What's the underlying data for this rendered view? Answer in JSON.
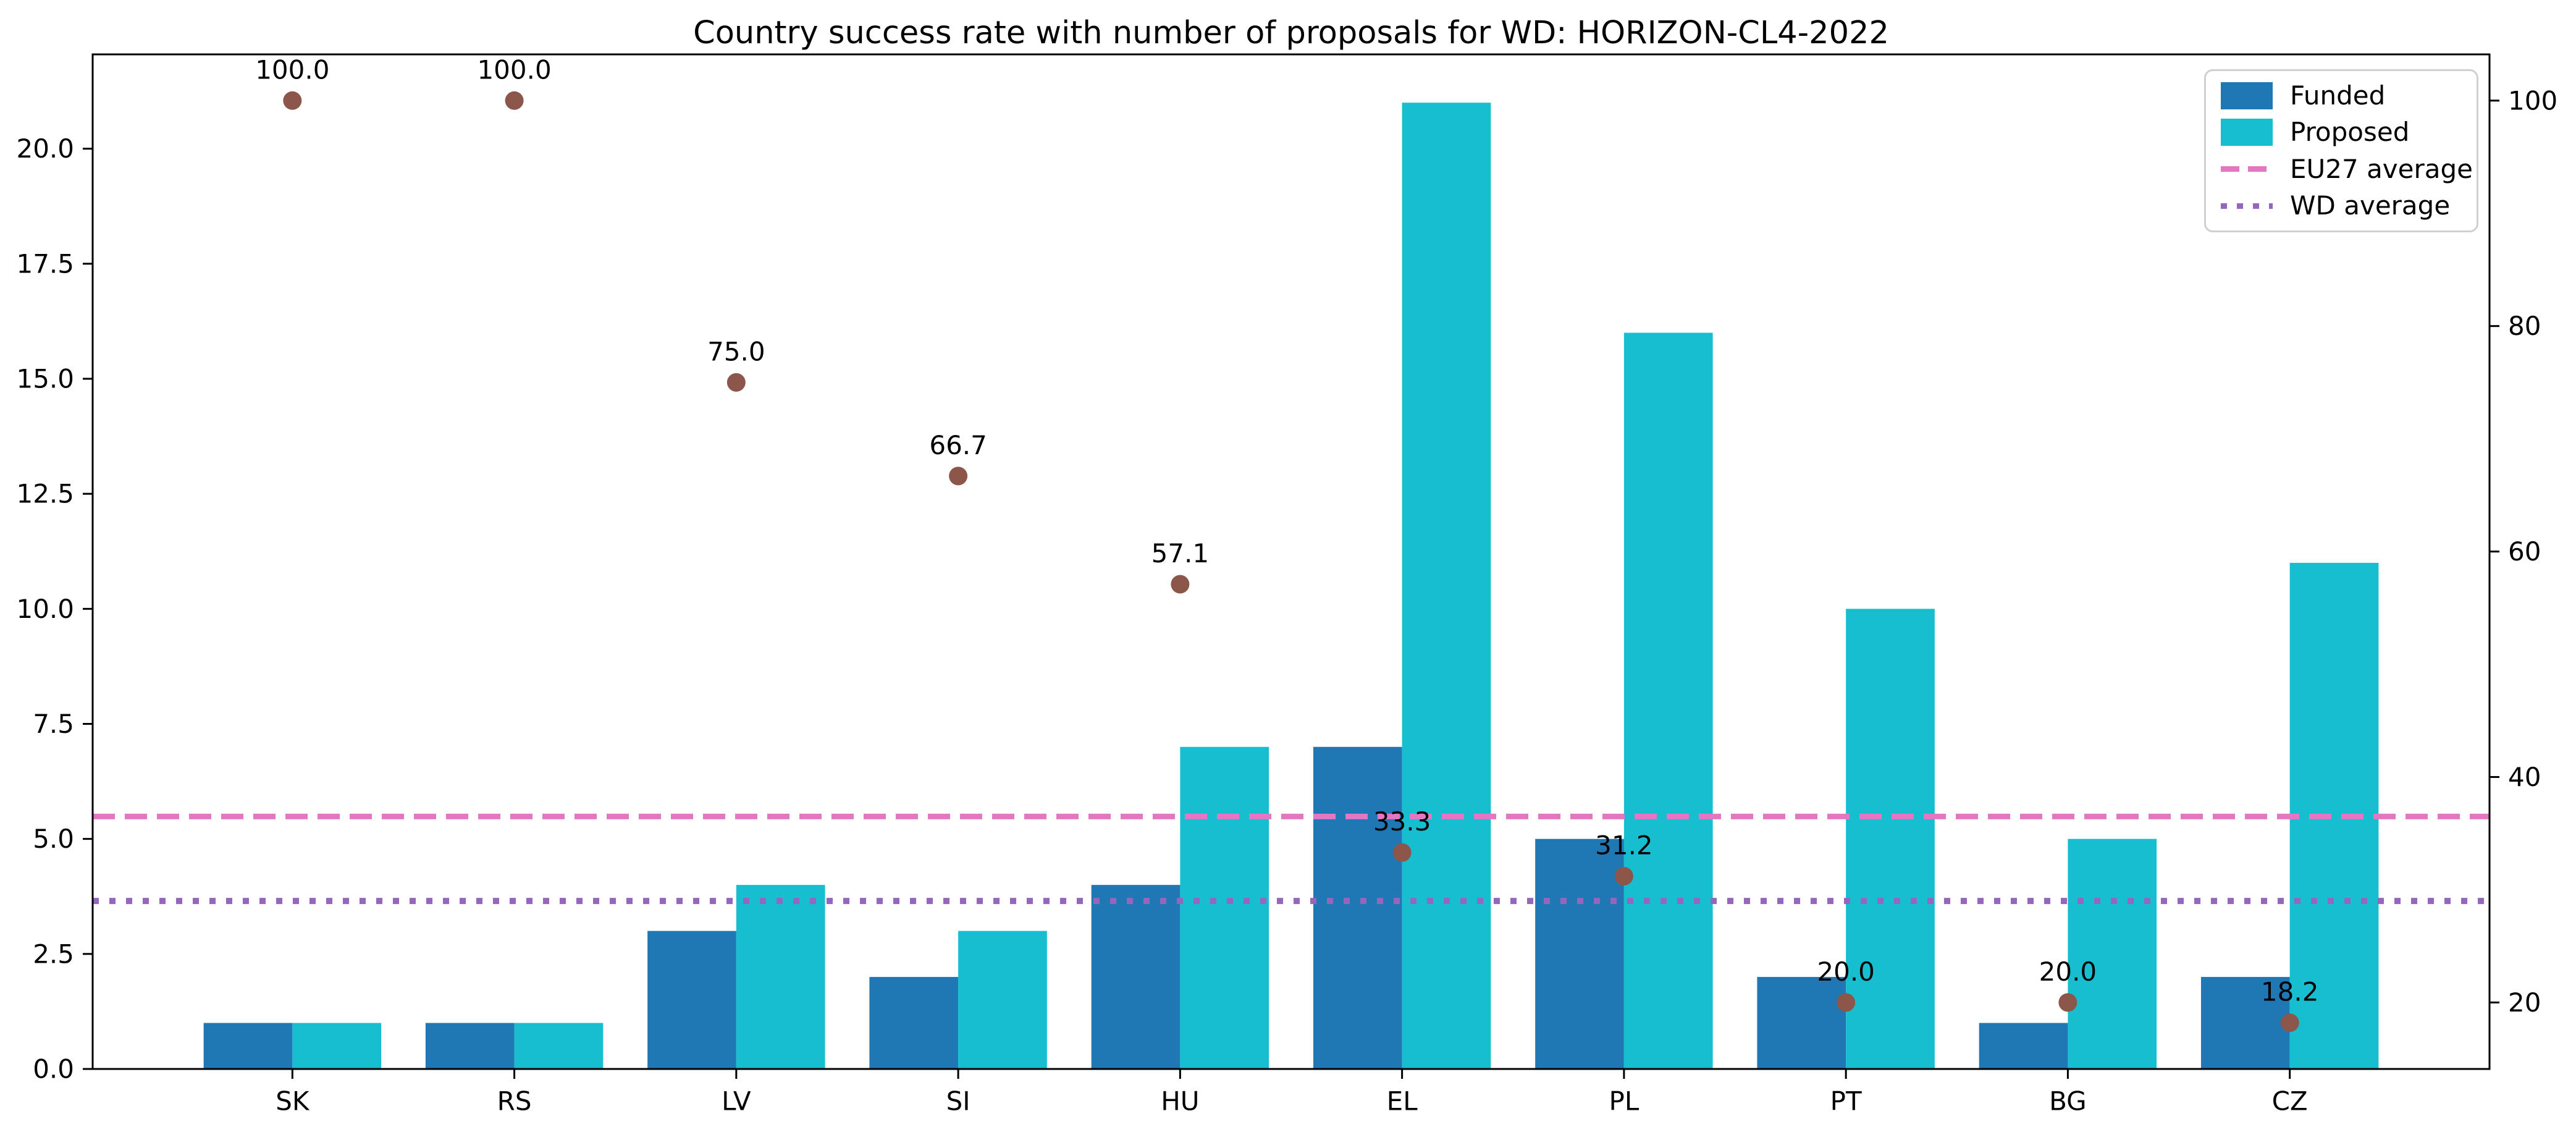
{
  "chart_data": {
    "type": "bar",
    "title": "Country success rate with number of proposals for WD: HORIZON-CL4-2022",
    "categories": [
      "SK",
      "RS",
      "LV",
      "SI",
      "HU",
      "EL",
      "PL",
      "PT",
      "BG",
      "CZ"
    ],
    "series": [
      {
        "name": "Funded",
        "type": "bar",
        "axis": "left",
        "color": "#1f77b4",
        "values": [
          1,
          1,
          3,
          2,
          4,
          7,
          5,
          2,
          1,
          2
        ]
      },
      {
        "name": "Proposed",
        "type": "bar",
        "axis": "left",
        "color": "#17becf",
        "values": [
          1,
          1,
          4,
          3,
          7,
          21,
          16,
          10,
          5,
          11
        ]
      },
      {
        "name": "Success rate",
        "type": "scatter",
        "axis": "right",
        "color": "#8c564b",
        "values": [
          100.0,
          100.0,
          75.0,
          66.7,
          57.1,
          33.3,
          31.2,
          20.0,
          20.0,
          18.2
        ],
        "labels": [
          "100.0",
          "100.0",
          "75.0",
          "66.7",
          "57.1",
          "33.3",
          "31.2",
          "20.0",
          "20.0",
          "18.2"
        ]
      },
      {
        "name": "EU27 average",
        "type": "hline",
        "axis": "right",
        "color": "#e377c2",
        "style": "dashed",
        "value": 36.5
      },
      {
        "name": "WD average",
        "type": "hline",
        "axis": "right",
        "color": "#9467bd",
        "style": "dotted",
        "value": 29.0
      }
    ],
    "axes": {
      "x": {
        "lim": [
          -0.9,
          9.9
        ],
        "bar_width": 0.4
      },
      "left": {
        "lim": [
          0,
          22.05
        ],
        "tick_labels": [
          "0.0",
          "2.5",
          "5.0",
          "7.5",
          "10.0",
          "12.5",
          "15.0",
          "17.5",
          "20.0"
        ],
        "tick_values": [
          0,
          2.5,
          5,
          7.5,
          10,
          12.5,
          15,
          17.5,
          20
        ]
      },
      "right": {
        "lim": [
          14.1,
          104.1
        ],
        "tick_labels": [
          "20",
          "40",
          "60",
          "80",
          "100"
        ],
        "tick_values": [
          20,
          40,
          60,
          80,
          100
        ]
      }
    },
    "grid": false,
    "legend_position": "upper right"
  },
  "legend": {
    "items": [
      {
        "label": "Funded",
        "color": "#1f77b4",
        "swatch": "bar"
      },
      {
        "label": "Proposed",
        "color": "#17becf",
        "swatch": "bar"
      },
      {
        "label": "EU27 average",
        "color": "#e377c2",
        "swatch": "dashed"
      },
      {
        "label": "WD average",
        "color": "#9467bd",
        "swatch": "dotted"
      }
    ]
  }
}
